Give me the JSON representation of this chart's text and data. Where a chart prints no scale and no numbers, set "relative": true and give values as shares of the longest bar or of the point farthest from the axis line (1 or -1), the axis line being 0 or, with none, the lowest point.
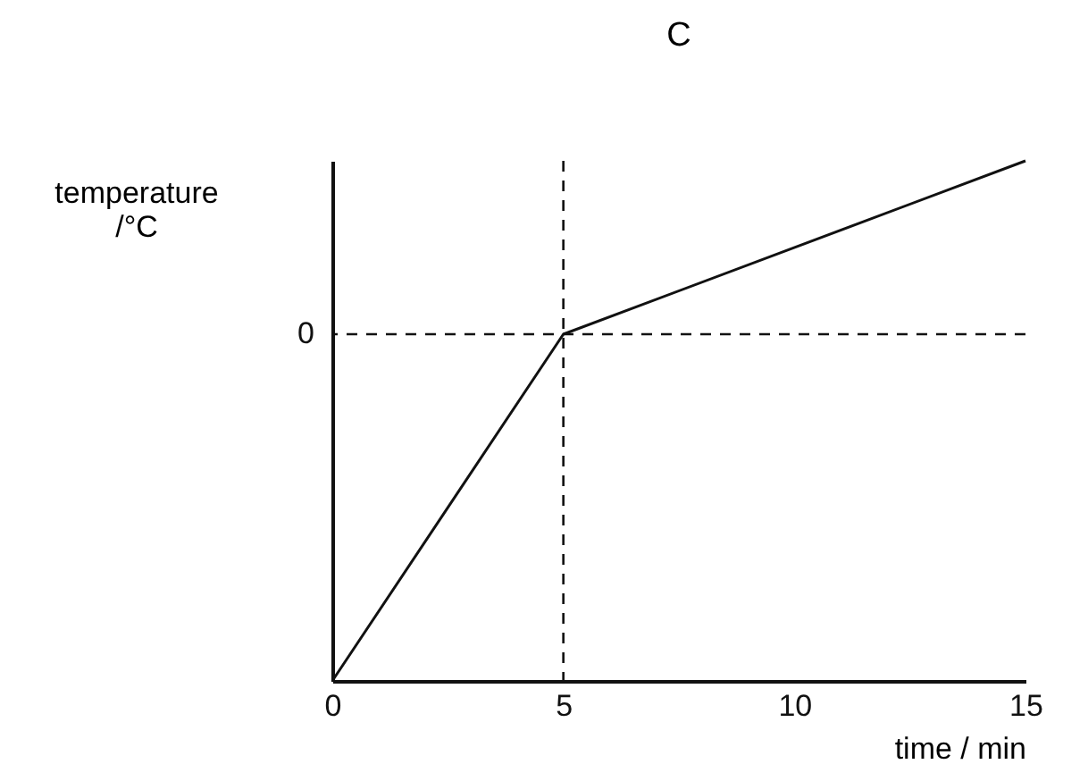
{
  "chart_data": {
    "type": "line",
    "title": "C",
    "xlabel": "time / min",
    "ylabel": "temperature /°C",
    "relative": true,
    "x": [
      0,
      5,
      15
    ],
    "series": [
      {
        "color": "#111111",
        "values": [
          -1,
          0,
          0.5
        ]
      }
    ],
    "xlim": [
      0,
      15
    ],
    "xticks": [
      0,
      5,
      10,
      15
    ],
    "ref_lines": [
      {
        "axis": "x",
        "value": 5,
        "line_style": "dashed",
        "color": "#111111"
      },
      {
        "axis": "y",
        "value": 0,
        "label": "0",
        "line_style": "dashed",
        "color": "#111111"
      }
    ],
    "grid": false,
    "marker": "none",
    "line_style": "solid"
  }
}
